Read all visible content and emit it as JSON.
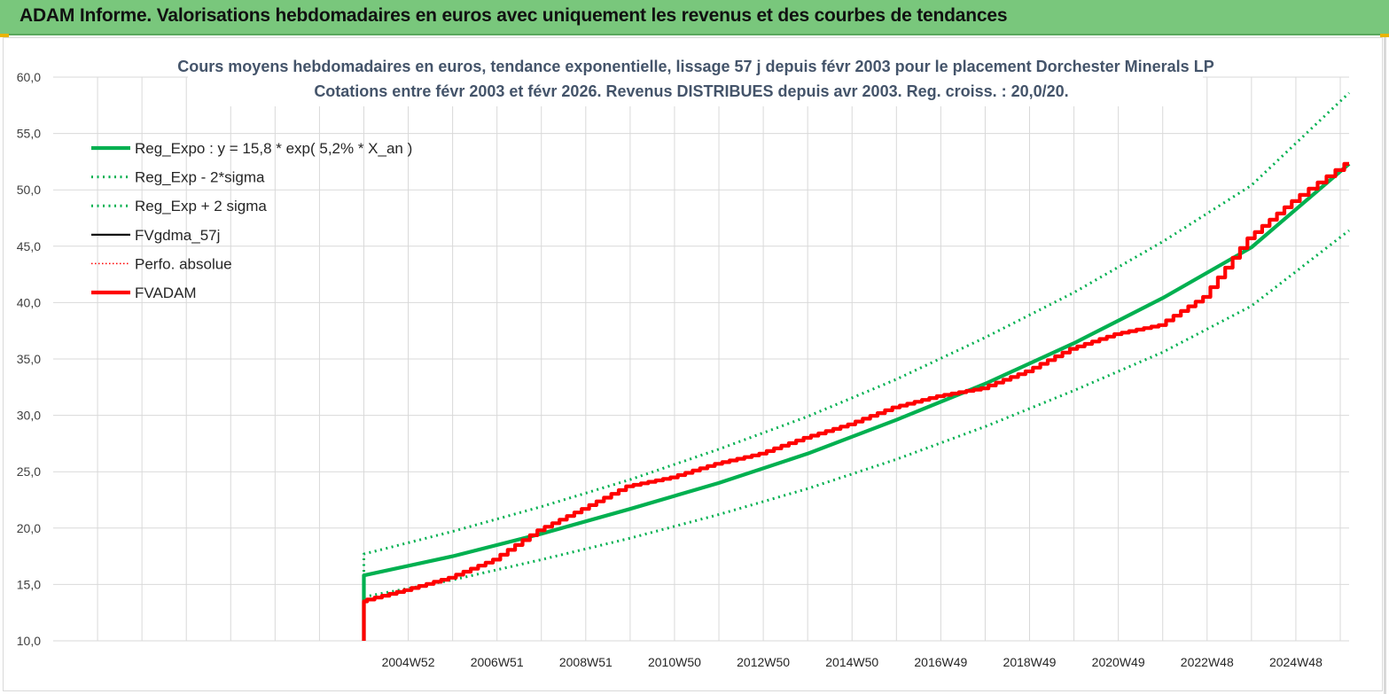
{
  "page": {
    "header_title": "ADAM Informe. Valorisations hebdomadaires en euros avec uniquement les revenus et des courbes de tendances"
  },
  "chart_data": {
    "type": "line",
    "title": "Cours moyens hebdomadaires en euros, tendance exponentielle, lissage 57 j depuis févr 2003 pour le placement Dorchester Minerals LP",
    "subtitle": "Cotations entre févr 2003 et févr 2026. Revenus DISTRIBUES depuis avr 2003. Reg. croiss. : 20,0/20.",
    "xlabel": "",
    "ylabel": "",
    "ylim": [
      10,
      60
    ],
    "xlim": [
      1997.1,
      2026.3
    ],
    "y_ticks": [
      10,
      15,
      20,
      25,
      30,
      35,
      40,
      45,
      50,
      55,
      60
    ],
    "y_tick_labels": [
      "10,0",
      "15,0",
      "20,0",
      "25,0",
      "30,0",
      "35,0",
      "40,0",
      "45,0",
      "50,0",
      "55,0",
      "60,0"
    ],
    "x_gridlines": [
      1998.1,
      1999.1,
      2000.1,
      2001.1,
      2002.1,
      2003.1,
      2004.1,
      2005.1,
      2006.1,
      2007.1,
      2008.1,
      2009.1,
      2010.1,
      2011.1,
      2012.1,
      2013.1,
      2014.1,
      2015.1,
      2016.1,
      2017.1,
      2018.1,
      2019.1,
      2020.1,
      2021.1,
      2022.1,
      2023.1,
      2024.1,
      2025.1,
      2026.1
    ],
    "x_tick_labels": [
      {
        "x": 2005.1,
        "label": "2004W52"
      },
      {
        "x": 2007.1,
        "label": "2006W51"
      },
      {
        "x": 2009.1,
        "label": "2008W51"
      },
      {
        "x": 2011.1,
        "label": "2010W50"
      },
      {
        "x": 2013.1,
        "label": "2012W50"
      },
      {
        "x": 2015.1,
        "label": "2014W50"
      },
      {
        "x": 2017.1,
        "label": "2016W49"
      },
      {
        "x": 2019.1,
        "label": "2018W49"
      },
      {
        "x": 2021.1,
        "label": "2020W49"
      },
      {
        "x": 2023.1,
        "label": "2022W48"
      },
      {
        "x": 2025.1,
        "label": "2024W48"
      }
    ],
    "legend_position": "top-left",
    "series": [
      {
        "name": "Reg_Expo : y = 15,8 * exp( 5,2% *  X_an )",
        "style": "solid-thick",
        "color": "#00b050",
        "x": [
          2004.1,
          2004.1,
          2006.1,
          2008.1,
          2010.1,
          2012.1,
          2014.1,
          2016.1,
          2018.1,
          2020.1,
          2022.1,
          2024.1,
          2026.3
        ],
        "y": [
          10.0,
          15.8,
          17.5,
          19.5,
          21.7,
          24.0,
          26.6,
          29.6,
          32.8,
          36.4,
          40.4,
          44.9,
          52.3
        ]
      },
      {
        "name": "Reg_Exp - 2*sigma",
        "style": "dotted",
        "color": "#00b050",
        "x": [
          2004.1,
          2006.1,
          2008.1,
          2010.1,
          2012.1,
          2014.1,
          2016.1,
          2018.1,
          2020.1,
          2022.1,
          2024.1,
          2026.3
        ],
        "y": [
          13.9,
          15.4,
          17.2,
          19.1,
          21.2,
          23.5,
          26.1,
          29.0,
          32.2,
          35.6,
          39.7,
          46.4
        ]
      },
      {
        "name": "Reg_Exp + 2 sigma",
        "style": "dotted",
        "color": "#00b050",
        "x": [
          2004.1,
          2004.1,
          2006.1,
          2008.1,
          2010.1,
          2012.1,
          2014.1,
          2016.1,
          2018.1,
          2020.1,
          2022.1,
          2024.1,
          2026.3
        ],
        "y": [
          10.0,
          17.7,
          19.7,
          21.9,
          24.3,
          27.0,
          29.9,
          33.2,
          36.9,
          40.9,
          45.4,
          50.4,
          58.6
        ]
      },
      {
        "name": "FVgdma_57j",
        "style": "solid",
        "color": "#000000",
        "x": [
          2004.1,
          2004.1,
          2005.1,
          2006.1,
          2007.1,
          2008.1,
          2009.1,
          2010.1,
          2011.1,
          2012.1,
          2013.1,
          2014.1,
          2015.1,
          2016.1,
          2017.1,
          2018.1,
          2019.1,
          2020.1,
          2021.1,
          2022.1,
          2023.1,
          2024.1,
          2025.1,
          2026.3
        ],
        "y": [
          10.0,
          13.5,
          14.5,
          15.6,
          17.2,
          19.8,
          21.7,
          23.7,
          24.5,
          25.7,
          26.6,
          28.0,
          29.2,
          30.7,
          31.7,
          32.4,
          33.9,
          35.9,
          37.2,
          38.0,
          40.5,
          45.7,
          49.0,
          52.3
        ]
      },
      {
        "name": "Perfo. absolue",
        "style": "dotted-thin",
        "color": "#ff0000",
        "x": [
          2004.1,
          2004.1,
          2005.1,
          2006.1,
          2007.1,
          2008.1,
          2009.1,
          2010.1,
          2011.1,
          2012.1,
          2013.1,
          2014.1,
          2015.1,
          2016.1,
          2017.1,
          2018.1,
          2019.1,
          2020.1,
          2021.1,
          2022.1,
          2023.1,
          2024.1,
          2025.1,
          2026.3
        ],
        "y": [
          10.0,
          13.5,
          14.5,
          15.6,
          17.2,
          19.8,
          21.7,
          23.7,
          24.5,
          25.7,
          26.6,
          28.0,
          29.2,
          30.7,
          31.7,
          32.4,
          33.9,
          35.9,
          37.2,
          38.0,
          40.5,
          45.7,
          49.0,
          52.3
        ]
      },
      {
        "name": "FVADAM",
        "style": "solid-thick",
        "color": "#ff0000",
        "x": [
          2004.1,
          2004.1,
          2005.1,
          2006.1,
          2007.1,
          2008.1,
          2009.1,
          2010.1,
          2011.1,
          2012.1,
          2013.1,
          2014.1,
          2015.1,
          2016.1,
          2017.1,
          2018.1,
          2019.1,
          2020.1,
          2021.1,
          2022.1,
          2023.1,
          2024.1,
          2025.1,
          2026.3
        ],
        "y": [
          10.0,
          13.5,
          14.5,
          15.6,
          17.2,
          19.8,
          21.7,
          23.7,
          24.5,
          25.7,
          26.6,
          28.0,
          29.2,
          30.7,
          31.7,
          32.4,
          33.9,
          35.9,
          37.2,
          38.0,
          40.5,
          45.7,
          49.0,
          52.3
        ]
      }
    ]
  }
}
